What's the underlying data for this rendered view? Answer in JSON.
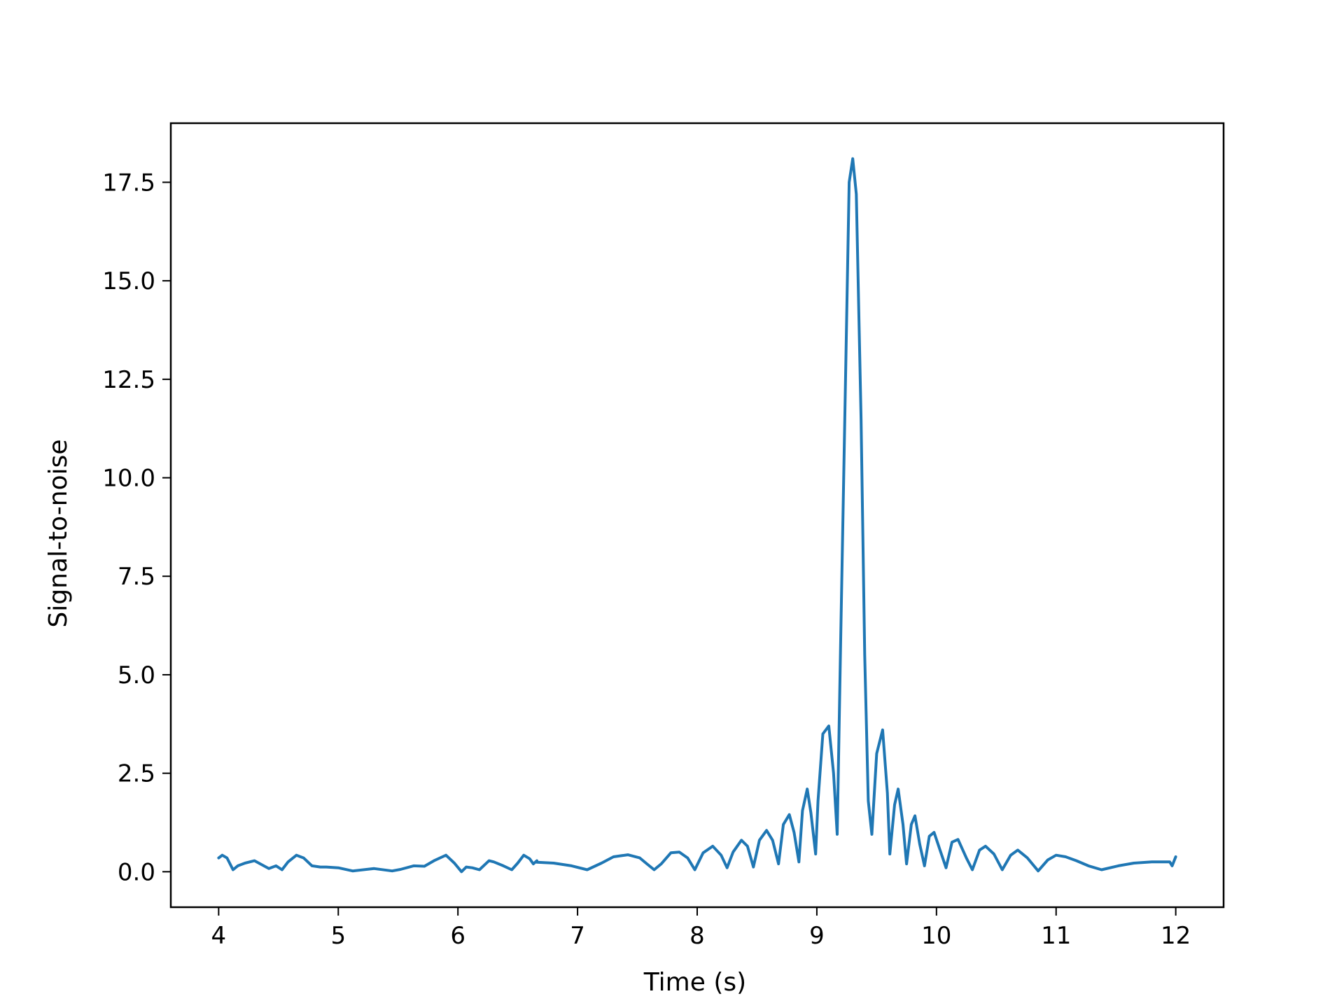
{
  "chart_data": {
    "type": "line",
    "title": "",
    "xlabel": "Time (s)",
    "ylabel": "Signal-to-noise",
    "xlim": [
      3.6,
      12.4
    ],
    "ylim": [
      -0.9,
      19.0
    ],
    "xticks": [
      4,
      5,
      6,
      7,
      8,
      9,
      10,
      11,
      12
    ],
    "xtick_labels": [
      "4",
      "5",
      "6",
      "7",
      "8",
      "9",
      "10",
      "11",
      "12"
    ],
    "yticks": [
      0.0,
      2.5,
      5.0,
      7.5,
      10.0,
      12.5,
      15.0,
      17.5
    ],
    "ytick_labels": [
      "0.0",
      "2.5",
      "5.0",
      "7.5",
      "10.0",
      "12.5",
      "15.0",
      "17.5"
    ],
    "grid": false,
    "legend": "none",
    "colors": {
      "line": "#1f77b4",
      "axes": "#000000",
      "background": "#ffffff"
    },
    "series": [
      {
        "x": [
          4.0,
          4.03,
          4.07,
          4.12,
          4.16,
          4.22,
          4.3,
          4.36,
          4.42,
          4.48,
          4.53,
          4.58,
          4.65,
          4.71,
          4.78,
          4.85,
          4.9,
          5.0,
          5.12,
          5.3,
          5.45,
          5.52,
          5.63,
          5.72,
          5.8,
          5.9,
          5.97,
          6.03,
          6.07,
          6.12,
          6.18,
          6.26,
          6.3,
          6.38,
          6.45,
          6.5,
          6.55,
          6.6,
          6.63,
          6.66,
          6.66,
          6.8,
          6.95,
          7.08,
          7.2,
          7.3,
          7.42,
          7.52,
          7.58,
          7.64,
          7.7,
          7.78,
          7.85,
          7.92,
          7.98,
          8.05,
          8.13,
          8.2,
          8.25,
          8.3,
          8.37,
          8.42,
          8.47,
          8.52,
          8.58,
          8.63,
          8.68,
          8.72,
          8.77,
          8.81,
          8.85,
          8.88,
          8.92,
          8.95,
          8.99,
          9.01,
          9.05,
          9.1,
          9.14,
          9.17,
          9.2,
          9.24,
          9.27,
          9.3,
          9.33,
          9.37,
          9.4,
          9.43,
          9.46,
          9.5,
          9.55,
          9.59,
          9.61,
          9.65,
          9.68,
          9.72,
          9.75,
          9.79,
          9.82,
          9.86,
          9.9,
          9.94,
          9.98,
          10.03,
          10.08,
          10.13,
          10.18,
          10.25,
          10.3,
          10.36,
          10.41,
          10.48,
          10.55,
          10.62,
          10.68,
          10.76,
          10.85,
          10.93,
          11.0,
          11.08,
          11.17,
          11.27,
          11.38,
          11.52,
          11.65,
          11.8,
          11.95,
          11.97,
          12.0
        ],
        "y": [
          0.35,
          0.42,
          0.35,
          0.05,
          0.15,
          0.22,
          0.28,
          0.18,
          0.08,
          0.15,
          0.05,
          0.25,
          0.42,
          0.35,
          0.15,
          0.12,
          0.12,
          0.1,
          0.02,
          0.08,
          0.02,
          0.06,
          0.15,
          0.14,
          0.28,
          0.42,
          0.22,
          0.0,
          0.12,
          0.1,
          0.05,
          0.28,
          0.25,
          0.15,
          0.05,
          0.22,
          0.42,
          0.33,
          0.2,
          0.28,
          0.24,
          0.22,
          0.15,
          0.05,
          0.22,
          0.38,
          0.43,
          0.35,
          0.2,
          0.05,
          0.2,
          0.48,
          0.5,
          0.35,
          0.05,
          0.48,
          0.65,
          0.42,
          0.1,
          0.5,
          0.8,
          0.65,
          0.12,
          0.8,
          1.05,
          0.8,
          0.2,
          1.2,
          1.45,
          1.0,
          0.25,
          1.55,
          2.1,
          1.5,
          0.45,
          1.8,
          3.5,
          3.7,
          2.5,
          0.95,
          6.0,
          12.5,
          17.5,
          18.1,
          17.2,
          11.5,
          5.5,
          1.8,
          0.95,
          3.0,
          3.6,
          2.0,
          0.45,
          1.7,
          2.1,
          1.2,
          0.2,
          1.2,
          1.42,
          0.7,
          0.15,
          0.9,
          1.0,
          0.55,
          0.1,
          0.75,
          0.82,
          0.35,
          0.05,
          0.55,
          0.65,
          0.45,
          0.05,
          0.42,
          0.55,
          0.35,
          0.02,
          0.3,
          0.42,
          0.38,
          0.28,
          0.15,
          0.05,
          0.15,
          0.22,
          0.25,
          0.25,
          0.15,
          0.38
        ]
      }
    ]
  }
}
